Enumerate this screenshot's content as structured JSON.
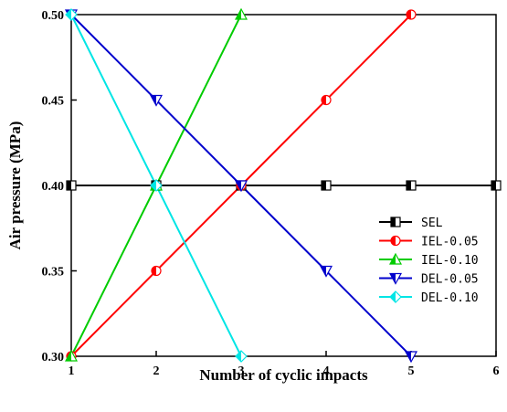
{
  "chart_data": {
    "type": "line",
    "xlabel": "Number of cyclic impacts",
    "ylabel": "Air pressure (MPa)",
    "xlim": [
      1,
      6
    ],
    "ylim": [
      0.3,
      0.5
    ],
    "xticks": [
      1,
      2,
      3,
      4,
      5,
      6
    ],
    "yticks": [
      0.3,
      0.35,
      0.4,
      0.45,
      0.5
    ],
    "xtick_labels": [
      "1",
      "2",
      "3",
      "4",
      "5",
      "6"
    ],
    "ytick_labels": [
      "0.30",
      "0.35",
      "0.40",
      "0.45",
      "0.50"
    ],
    "grid": false,
    "legend_position": "right",
    "series": [
      {
        "name": "SEL",
        "color": "#000000",
        "marker": "half-square",
        "x": [
          1,
          2,
          3,
          4,
          5,
          6
        ],
        "y": [
          0.4,
          0.4,
          0.4,
          0.4,
          0.4,
          0.4
        ]
      },
      {
        "name": "IEL-0.05",
        "color": "#ff0000",
        "marker": "half-circle",
        "x": [
          1,
          2,
          3,
          4,
          5
        ],
        "y": [
          0.3,
          0.35,
          0.4,
          0.45,
          0.5
        ]
      },
      {
        "name": "IEL-0.10",
        "color": "#00cc00",
        "marker": "half-triangle-up",
        "x": [
          1,
          2,
          3
        ],
        "y": [
          0.3,
          0.4,
          0.5
        ]
      },
      {
        "name": "DEL-0.05",
        "color": "#0000cc",
        "marker": "half-triangle-down",
        "x": [
          1,
          2,
          3,
          4,
          5
        ],
        "y": [
          0.5,
          0.45,
          0.4,
          0.35,
          0.3
        ]
      },
      {
        "name": "DEL-0.10",
        "color": "#00e5e5",
        "marker": "half-diamond",
        "x": [
          1,
          2,
          3
        ],
        "y": [
          0.5,
          0.4,
          0.3
        ]
      }
    ]
  }
}
